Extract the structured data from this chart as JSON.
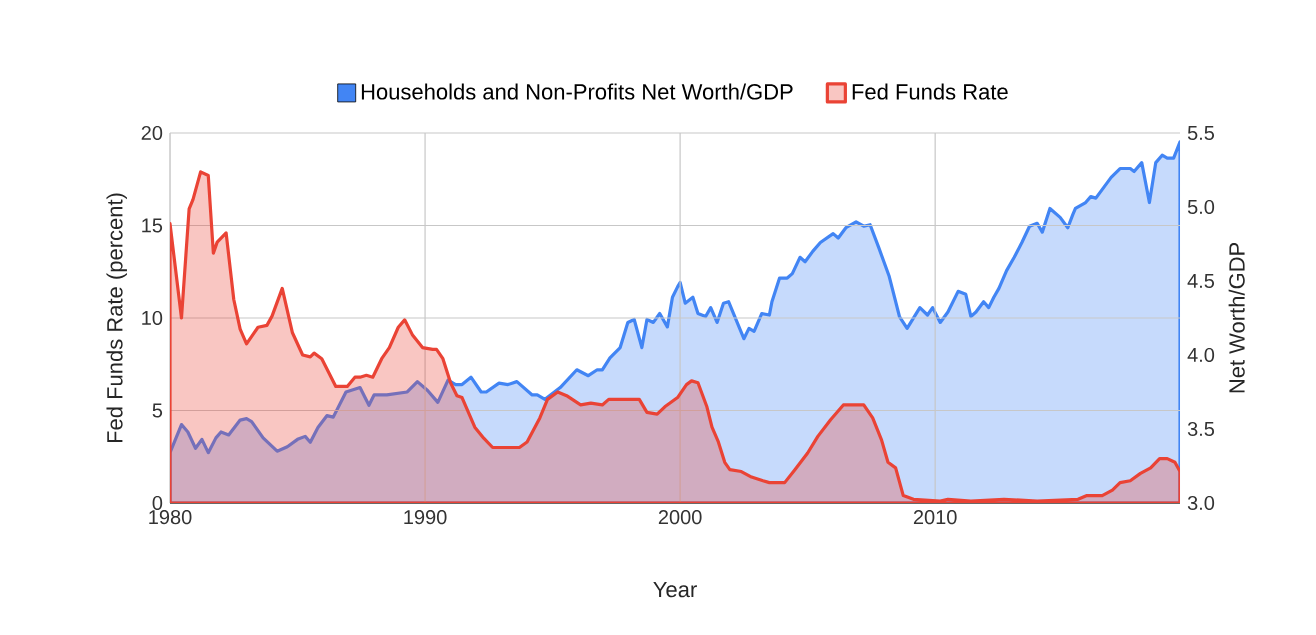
{
  "chart_data": {
    "type": "area",
    "xlabel": "Year",
    "ylabel": "Fed Funds Rate (percent)",
    "y2label": "Net Worth/GDP",
    "xlim": [
      1980,
      2019.6
    ],
    "xticks": [
      1980,
      1990,
      2000,
      2010
    ],
    "ylim": [
      0,
      20
    ],
    "yticks": [
      0,
      5,
      10,
      15,
      20
    ],
    "y2lim": [
      3.0,
      5.5
    ],
    "y2ticks": [
      {
        "value": 3,
        "label": "3.0"
      },
      3.5,
      {
        "value": 4,
        "label": "4.0"
      },
      4.5,
      {
        "value": 5,
        "label": "5.0"
      },
      5.5
    ],
    "grid": true,
    "legend": "top",
    "series": [
      {
        "name": "Households and Non-Profits Net Worth/GDP",
        "color": "#4285f4",
        "axis": "y2",
        "x": [
          1980.0,
          1980.45,
          1980.7,
          1981.0,
          1981.25,
          1981.5,
          1981.8,
          1982.0,
          1982.3,
          1982.75,
          1983.0,
          1983.2,
          1983.65,
          1984.2,
          1984.6,
          1985.0,
          1985.3,
          1985.5,
          1985.8,
          1986.15,
          1986.4,
          1986.9,
          1987.45,
          1987.8,
          1988.0,
          1988.5,
          1989.3,
          1989.7,
          1990.1,
          1990.5,
          1990.9,
          1991.2,
          1991.45,
          1991.8,
          1992.2,
          1992.4,
          1992.9,
          1993.25,
          1993.6,
          1994.2,
          1994.4,
          1994.7,
          1995.3,
          1995.95,
          1996.4,
          1996.75,
          1996.95,
          1997.25,
          1997.65,
          1997.95,
          1998.2,
          1998.5,
          1998.7,
          1998.95,
          1999.2,
          1999.5,
          1999.7,
          1999.9,
          2000.0,
          2000.2,
          2000.5,
          2000.7,
          2001.0,
          2001.2,
          2001.45,
          2001.7,
          2001.9,
          2002.5,
          2002.7,
          2002.9,
          2003.2,
          2003.5,
          2003.6,
          2003.9,
          2004.2,
          2004.4,
          2004.7,
          2004.9,
          2005.2,
          2005.5,
          2006.0,
          2006.2,
          2006.5,
          2006.9,
          2007.2,
          2007.45,
          2007.8,
          2008.2,
          2008.6,
          2008.9,
          2009.4,
          2009.7,
          2009.9,
          2010.2,
          2010.5,
          2010.9,
          2011.2,
          2011.4,
          2011.6,
          2011.9,
          2012.1,
          2012.3,
          2012.5,
          2012.8,
          2013.1,
          2013.4,
          2013.7,
          2014.0,
          2014.2,
          2014.5,
          2014.9,
          2015.2,
          2015.4,
          2015.5,
          2015.9,
          2016.1,
          2016.3,
          2016.6,
          2016.9,
          2017.25,
          2017.65,
          2017.8,
          2018.1,
          2018.4,
          2018.65,
          2018.9,
          2019.1,
          2019.35,
          2019.6
        ],
        "values": [
          3.34,
          3.53,
          3.48,
          3.37,
          3.43,
          3.34,
          3.44,
          3.48,
          3.46,
          3.56,
          3.57,
          3.55,
          3.44,
          3.35,
          3.38,
          3.43,
          3.45,
          3.41,
          3.51,
          3.59,
          3.58,
          3.75,
          3.78,
          3.66,
          3.73,
          3.73,
          3.75,
          3.82,
          3.76,
          3.68,
          3.83,
          3.8,
          3.8,
          3.85,
          3.75,
          3.75,
          3.81,
          3.8,
          3.82,
          3.73,
          3.73,
          3.7,
          3.78,
          3.9,
          3.86,
          3.9,
          3.9,
          3.98,
          4.05,
          4.22,
          4.24,
          4.05,
          4.24,
          4.22,
          4.28,
          4.19,
          4.39,
          4.46,
          4.49,
          4.35,
          4.39,
          4.28,
          4.26,
          4.32,
          4.22,
          4.35,
          4.36,
          4.11,
          4.18,
          4.16,
          4.28,
          4.27,
          4.36,
          4.52,
          4.52,
          4.55,
          4.66,
          4.63,
          4.7,
          4.76,
          4.82,
          4.79,
          4.86,
          4.9,
          4.87,
          4.88,
          4.72,
          4.53,
          4.26,
          4.18,
          4.32,
          4.27,
          4.32,
          4.22,
          4.29,
          4.43,
          4.41,
          4.26,
          4.29,
          4.36,
          4.32,
          4.39,
          4.45,
          4.57,
          4.66,
          4.76,
          4.87,
          4.89,
          4.83,
          4.99,
          4.93,
          4.86,
          4.95,
          4.99,
          5.03,
          5.07,
          5.06,
          5.13,
          5.2,
          5.26,
          5.26,
          5.24,
          5.3,
          5.03,
          5.3,
          5.35,
          5.33,
          5.33,
          5.44
        ]
      },
      {
        "name": "Fed Funds Rate",
        "color": "#ea4335",
        "x": [
          1980.0,
          1980.45,
          1980.75,
          1980.9,
          1981.2,
          1981.5,
          1981.7,
          1981.85,
          1982.2,
          1982.5,
          1982.75,
          1983.0,
          1983.25,
          1983.45,
          1983.8,
          1984.0,
          1984.4,
          1984.8,
          1985.2,
          1985.5,
          1985.65,
          1985.95,
          1986.5,
          1986.95,
          1987.25,
          1987.45,
          1987.7,
          1987.95,
          1988.3,
          1988.6,
          1988.95,
          1989.2,
          1989.5,
          1989.9,
          1990.3,
          1990.45,
          1990.7,
          1991.0,
          1991.25,
          1991.45,
          1991.95,
          1992.3,
          1992.65,
          1993.2,
          1993.7,
          1994.0,
          1994.5,
          1994.8,
          1995.2,
          1995.55,
          1996.1,
          1996.5,
          1996.95,
          1997.2,
          1998.4,
          1998.7,
          1999.1,
          1999.4,
          1999.9,
          2000.25,
          2000.45,
          2000.7,
          2001.05,
          2001.25,
          2001.5,
          2001.75,
          2001.95,
          2002.4,
          2002.8,
          2003.25,
          2003.5,
          2004.1,
          2004.5,
          2005.0,
          2005.4,
          2005.9,
          2006.4,
          2007.2,
          2007.55,
          2007.9,
          2008.15,
          2008.45,
          2008.75,
          2009.15,
          2010.2,
          2010.5,
          2011.4,
          2012.7,
          2014.0,
          2015.6,
          2015.95,
          2016.55,
          2016.95,
          2017.25,
          2017.65,
          2018.05,
          2018.45,
          2018.8,
          2019.1,
          2019.4,
          2019.6
        ],
        "values": [
          15.1,
          10.0,
          15.9,
          16.4,
          17.9,
          17.7,
          13.5,
          14.1,
          14.6,
          11.0,
          9.4,
          8.6,
          9.1,
          9.5,
          9.6,
          10.1,
          11.6,
          9.2,
          8.0,
          7.9,
          8.1,
          7.8,
          6.3,
          6.3,
          6.8,
          6.8,
          6.9,
          6.8,
          7.8,
          8.4,
          9.5,
          9.9,
          9.1,
          8.4,
          8.3,
          8.3,
          7.8,
          6.5,
          5.8,
          5.7,
          4.1,
          3.5,
          3.0,
          3.0,
          3.0,
          3.3,
          4.6,
          5.6,
          6.0,
          5.8,
          5.3,
          5.4,
          5.3,
          5.6,
          5.6,
          4.9,
          4.8,
          5.2,
          5.7,
          6.4,
          6.6,
          6.5,
          5.2,
          4.1,
          3.3,
          2.2,
          1.8,
          1.7,
          1.4,
          1.2,
          1.1,
          1.1,
          1.8,
          2.7,
          3.6,
          4.5,
          5.3,
          5.3,
          4.6,
          3.4,
          2.2,
          1.9,
          0.4,
          0.2,
          0.1,
          0.2,
          0.1,
          0.2,
          0.1,
          0.2,
          0.4,
          0.4,
          0.7,
          1.1,
          1.2,
          1.6,
          1.9,
          2.4,
          2.4,
          2.2,
          1.7
        ]
      }
    ]
  }
}
